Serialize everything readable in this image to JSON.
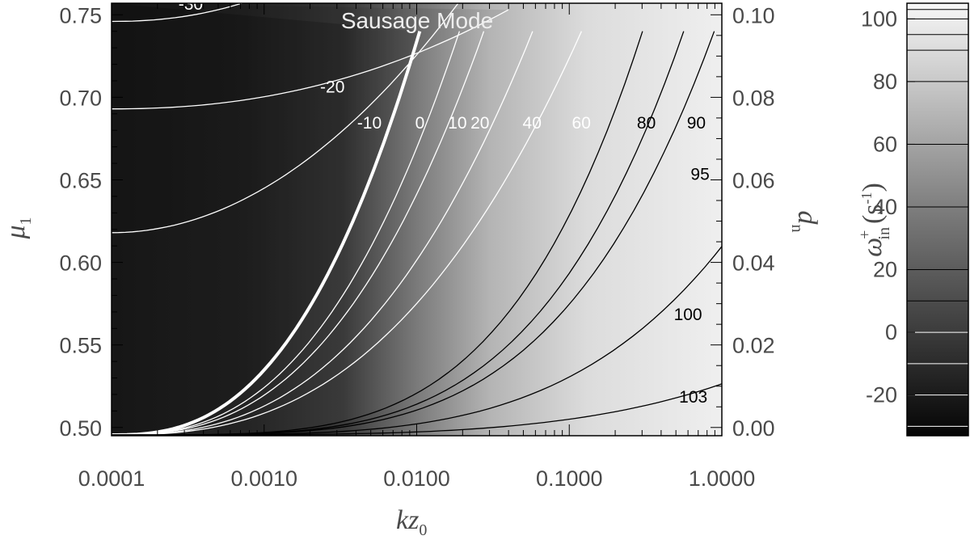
{
  "chart_data": {
    "type": "heatmap",
    "title": "Sausage Mode",
    "x": {
      "label_main": "kz",
      "label_sub": "0",
      "scale": "log",
      "range": [
        0.0001,
        1.0
      ],
      "ticks": [
        0.0001,
        0.001,
        0.01,
        0.1,
        1.0
      ],
      "tick_labels": [
        "0.0001",
        "0.0010",
        "0.0100",
        "0.1000",
        "1.0000"
      ]
    },
    "y_left": {
      "label_main": "μ",
      "label_sub": "1",
      "range": [
        0.495,
        0.757
      ],
      "ticks": [
        0.5,
        0.55,
        0.6,
        0.65,
        0.7,
        0.75
      ],
      "tick_labels": [
        "0.50",
        "0.55",
        "0.60",
        "0.65",
        "0.70",
        "0.75"
      ]
    },
    "y_right": {
      "label_main": "d",
      "label_sub": "n",
      "ticks": [
        0.0,
        0.02,
        0.04,
        0.06,
        0.08,
        0.1
      ],
      "tick_labels": [
        "0.00",
        "0.02",
        "0.04",
        "0.06",
        "0.08",
        "0.10"
      ]
    },
    "colorbar": {
      "label_main": "ω",
      "label_sup": "+",
      "label_sub": "in",
      "label_unit": "(s",
      "label_unit_sup": "-1",
      "label_unit_close": ")",
      "range": [
        -33,
        105
      ],
      "ticks": [
        -20,
        0,
        20,
        40,
        60,
        80,
        100
      ],
      "tick_labels": [
        "-20",
        "0",
        "20",
        "40",
        "60",
        "80",
        "100"
      ]
    },
    "contours": [
      {
        "level": -30,
        "label": "-30",
        "color": "#ffffff",
        "label_x": 0.00033,
        "label_y": 0.753,
        "label_color": "#ffffff"
      },
      {
        "level": -20,
        "label": "-20",
        "color": "#ffffff",
        "label_x": 0.0028,
        "label_y": 0.703,
        "label_color": "#ffffff"
      },
      {
        "level": -10,
        "label": "-10",
        "color": "#ffffff",
        "label_x": 0.0049,
        "label_y": 0.681,
        "label_color": "#ffffff"
      },
      {
        "level": 0,
        "label": "0",
        "color": "#ffffff",
        "label_x": 0.0105,
        "label_y": 0.681,
        "label_color": "#ffffff"
      },
      {
        "level": 10,
        "label": "10",
        "color": "#ffffff",
        "label_x": 0.0185,
        "label_y": 0.681,
        "label_color": "#ffffff"
      },
      {
        "level": 20,
        "label": "20",
        "color": "#ffffff",
        "label_x": 0.026,
        "label_y": 0.681,
        "label_color": "#ffffff"
      },
      {
        "level": 40,
        "label": "40",
        "color": "#ffffff",
        "label_x": 0.057,
        "label_y": 0.681,
        "label_color": "#ffffff"
      },
      {
        "level": 60,
        "label": "60",
        "color": "#ffffff",
        "label_x": 0.12,
        "label_y": 0.681,
        "label_color": "#ffffff"
      },
      {
        "level": 80,
        "label": "80",
        "color": "#000000",
        "label_x": 0.32,
        "label_y": 0.681,
        "label_color": "#000000"
      },
      {
        "level": 90,
        "label": "90",
        "color": "#000000",
        "label_x": 0.68,
        "label_y": 0.681,
        "label_color": "#000000"
      },
      {
        "level": 95,
        "label": "95",
        "color": "#000000",
        "label_x": 0.72,
        "label_y": 0.65,
        "label_color": "#000000"
      },
      {
        "level": 100,
        "label": "100",
        "color": "#000000",
        "label_x": 0.6,
        "label_y": 0.565,
        "label_color": "#000000"
      },
      {
        "level": 103,
        "label": "103",
        "color": "#000000",
        "label_x": 0.65,
        "label_y": 0.515,
        "label_color": "#000000"
      }
    ]
  }
}
